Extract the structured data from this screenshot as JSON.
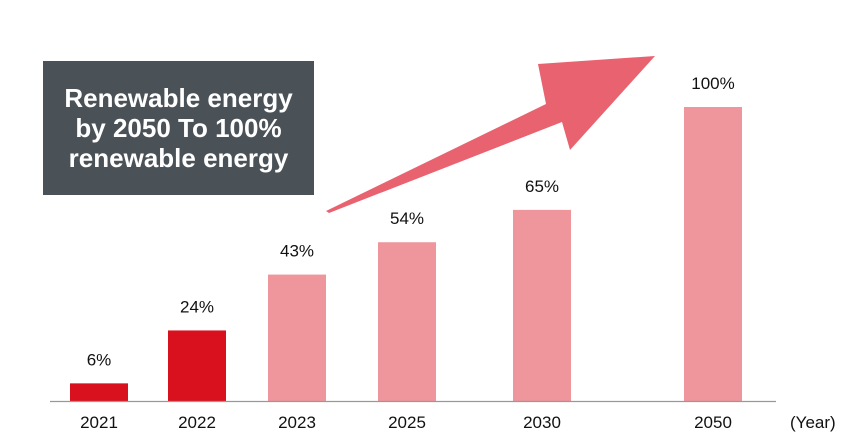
{
  "chart_data": {
    "type": "bar",
    "categories": [
      "2021",
      "2022",
      "2023",
      "2025",
      "2030",
      "2050"
    ],
    "values": [
      6,
      24,
      43,
      54,
      65,
      100
    ],
    "value_labels": [
      "6%",
      "24%",
      "43%",
      "54%",
      "65%",
      "100%"
    ],
    "xunit_label": "(Year)",
    "ylim": [
      0,
      100
    ],
    "grid": false,
    "colors": {
      "actual": "#d9101e",
      "target": "#ef959c",
      "arrow": "#e8636f",
      "axis": "#999999"
    },
    "bar_kind": [
      "actual",
      "actual",
      "target",
      "target",
      "target",
      "target"
    ]
  },
  "callout": {
    "text": "Renewable energy\nby 2050 To 100%\nrenewable energy"
  }
}
